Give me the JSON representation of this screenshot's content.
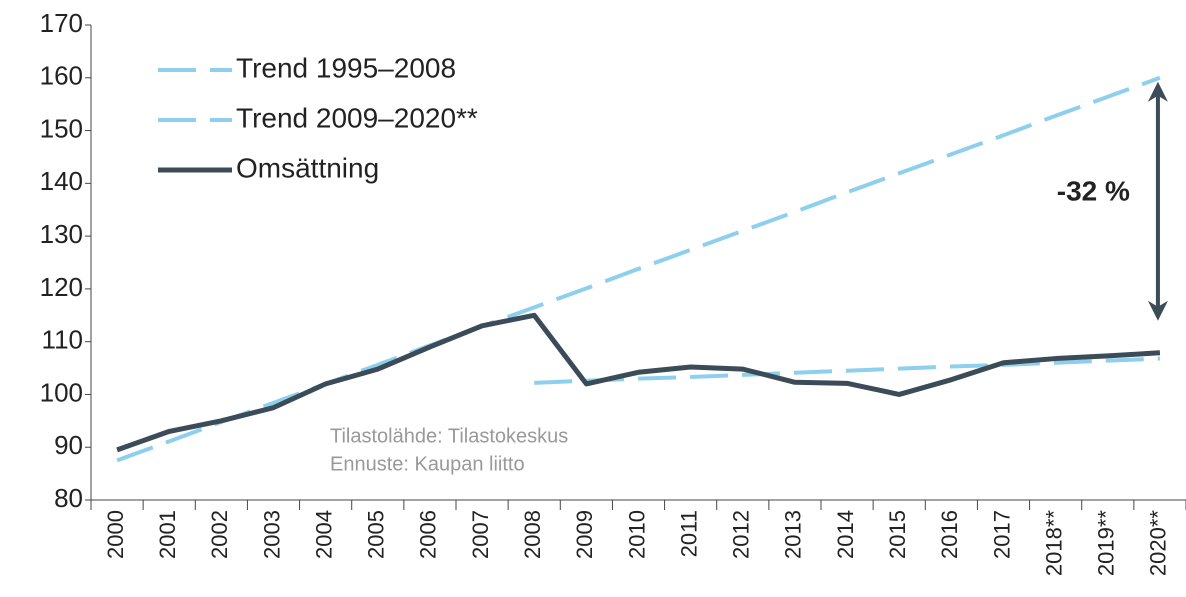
{
  "chart_data": {
    "type": "line",
    "categories": [
      "2000",
      "2001",
      "2002",
      "2003",
      "2004",
      "2005",
      "2006",
      "2007",
      "2008",
      "2009",
      "2010",
      "2011",
      "2012",
      "2013",
      "2014",
      "2015",
      "2016",
      "2017",
      "2018**",
      "2019**",
      "2020**"
    ],
    "series": [
      {
        "name": "Trend 1995–2008",
        "color": "#8ecfee",
        "dashed": true,
        "values": [
          87.5,
          91.1,
          94.8,
          98.4,
          102.0,
          105.6,
          109.3,
          112.9,
          116.5,
          120.1,
          123.8,
          127.4,
          131.0,
          134.6,
          138.3,
          141.9,
          145.5,
          149.1,
          152.8,
          156.4,
          160.0
        ]
      },
      {
        "name": "Trend 2009–2020**",
        "color": "#8ecfee",
        "dashed": true,
        "values": [
          null,
          null,
          null,
          null,
          null,
          null,
          null,
          null,
          102.2,
          102.6,
          103.0,
          103.3,
          103.7,
          104.1,
          104.5,
          104.9,
          105.3,
          105.6,
          106.0,
          106.4,
          106.8
        ]
      },
      {
        "name": "Omsättning",
        "color": "#3b4b57",
        "dashed": false,
        "values": [
          89.5,
          93.0,
          95.0,
          97.5,
          102.0,
          104.8,
          109.0,
          113.0,
          115.0,
          102.0,
          104.2,
          105.2,
          104.8,
          102.3,
          102.1,
          100.0,
          102.8,
          106.0,
          106.8,
          107.3,
          107.9
        ]
      }
    ],
    "ylim": [
      80,
      170
    ],
    "yticks": [
      80,
      90,
      100,
      110,
      120,
      130,
      140,
      150,
      160,
      170
    ],
    "annotations": [
      "-32 %",
      "Tilastolähde: Tilastokeskus",
      "Ennuste: Kaupan liitto"
    ],
    "legend": "upper left"
  }
}
